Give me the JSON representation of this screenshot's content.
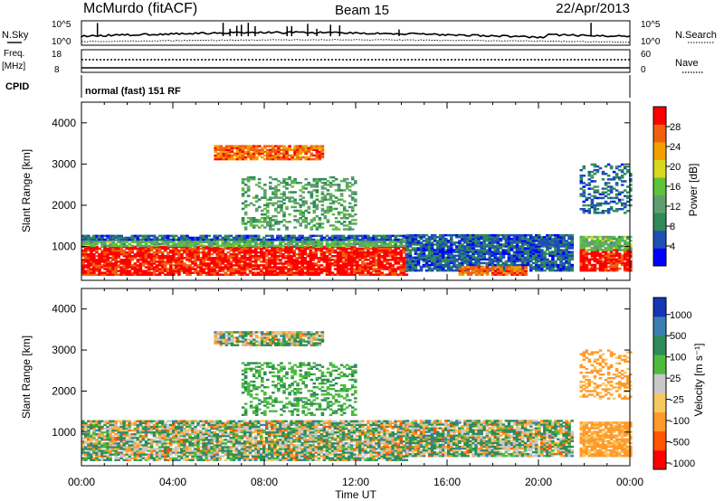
{
  "header": {
    "station": "McMurdo (fitACF)",
    "beam": "Beam 15",
    "date": "22/Apr/2013"
  },
  "top_panels": {
    "nsky_label": "N.Sky",
    "nsky_ticks": [
      "10^5",
      "10^0"
    ],
    "nsearch_label": "N.Search",
    "freq_label_1": "Freq.",
    "freq_label_2": "[MHz]",
    "freq_ticks": [
      "18",
      "8"
    ],
    "nave_label": "Nave",
    "nave_ticks": [
      "60",
      "0"
    ],
    "cpid_label": "CPID",
    "cpid_value": "normal (fast) 151 RF"
  },
  "colors": {
    "power_scale": [
      "#0000ff",
      "#1e4fb4",
      "#2e8b57",
      "#5f9f6f",
      "#5ec23c",
      "#d8d820",
      "#f0a000",
      "#f06010",
      "#ff0000"
    ],
    "velocity_scale": [
      "#ff0000",
      "#ff5500",
      "#ff9a2a",
      "#f5c862",
      "#c8c8c8",
      "#4cbb3c",
      "#2e8b57",
      "#3a7fb0",
      "#1437b4"
    ]
  },
  "chart_data": [
    {
      "type": "heatmap",
      "panel": "power",
      "ylabel": "Slant Range [km]",
      "y_ticks": [
        "4000",
        "3000",
        "2000",
        "1000"
      ],
      "ylim": [
        180,
        4500
      ],
      "colorbar_label": "Power [dB]",
      "colorbar_ticks": [
        "28",
        "24",
        "20",
        "16",
        "12",
        "8",
        "4"
      ],
      "colorbar_range": [
        0,
        32
      ],
      "regions": [
        {
          "t": [
            0.0,
            14.2
          ],
          "r": [
            300,
            1000
          ],
          "value": 30
        },
        {
          "t": [
            0.0,
            14.2
          ],
          "r": [
            1000,
            1150
          ],
          "value": 14
        },
        {
          "t": [
            0.0,
            14.2
          ],
          "r": [
            1150,
            1280
          ],
          "value": 6
        },
        {
          "t": [
            14.2,
            21.5
          ],
          "r": [
            400,
            1300
          ],
          "value": 6
        },
        {
          "t": [
            16.5,
            19.5
          ],
          "r": [
            300,
            500
          ],
          "value": 26
        },
        {
          "t": [
            21.8,
            24.0
          ],
          "r": [
            400,
            900
          ],
          "value": 30
        },
        {
          "t": [
            21.8,
            24.0
          ],
          "r": [
            900,
            1250
          ],
          "value": 14
        },
        {
          "t": [
            21.8,
            24.0
          ],
          "r": [
            1800,
            3000
          ],
          "value": 7
        },
        {
          "t": [
            5.8,
            10.5
          ],
          "r": [
            3100,
            3450
          ],
          "value": 26
        },
        {
          "t": [
            7.0,
            12.0
          ],
          "r": [
            1400,
            2700
          ],
          "value": 12
        }
      ]
    },
    {
      "type": "heatmap",
      "panel": "velocity",
      "ylabel": "Slant Range [km]",
      "y_ticks": [
        "4000",
        "3000",
        "2000",
        "1000"
      ],
      "ylim": [
        180,
        4500
      ],
      "xlabel": "Time UT",
      "x_ticks": [
        "00:00",
        "04:00",
        "08:00",
        "12:00",
        "16:00",
        "20:00",
        "00:00"
      ],
      "xlim": [
        0,
        24
      ],
      "colorbar_label": "Velocity [m s⁻¹]",
      "colorbar_ticks": [
        "1000",
        "500",
        "100",
        "25",
        "-25",
        "-100",
        "-500",
        "-1000"
      ],
      "regions": [
        {
          "t": [
            0.0,
            14.2
          ],
          "r": [
            300,
            1250
          ],
          "value": "mixed"
        },
        {
          "t": [
            14.2,
            21.5
          ],
          "r": [
            400,
            1300
          ],
          "value": "mixed"
        },
        {
          "t": [
            21.8,
            24.0
          ],
          "r": [
            400,
            1250
          ],
          "value": -100
        },
        {
          "t": [
            21.8,
            24.0
          ],
          "r": [
            1800,
            3000
          ],
          "value": -100
        },
        {
          "t": [
            5.8,
            10.5
          ],
          "r": [
            3100,
            3450
          ],
          "value": "mixed"
        },
        {
          "t": [
            7.0,
            12.0
          ],
          "r": [
            1400,
            2700
          ],
          "value": 100
        }
      ]
    }
  ]
}
